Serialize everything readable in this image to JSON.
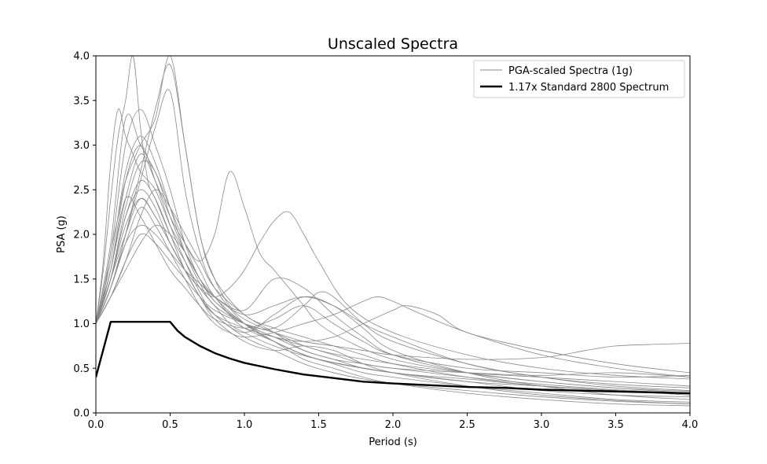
{
  "chart_data": {
    "type": "line",
    "title": "Unscaled Spectra",
    "xlabel": "Period (s)",
    "ylabel": "PSA (g)",
    "xlim": [
      0,
      4
    ],
    "ylim": [
      0,
      4
    ],
    "xticks": [
      0,
      0.5,
      1,
      1.5,
      2,
      2.5,
      3,
      3.5,
      4
    ],
    "xtick_labels": [
      "0.0",
      "0.5",
      "1.0",
      "1.5",
      "2.0",
      "2.5",
      "3.0",
      "3.5",
      "4.0"
    ],
    "yticks": [
      0,
      0.5,
      1,
      1.5,
      2,
      2.5,
      3,
      3.5,
      4
    ],
    "ytick_labels": [
      "0.0",
      "0.5",
      "1.0",
      "1.5",
      "2.0",
      "2.5",
      "3.0",
      "3.5",
      "4.0"
    ],
    "grid": false,
    "legend_position": "top-right",
    "legend": [
      {
        "label": "PGA-scaled Spectra (1g)",
        "color": "#888888"
      },
      {
        "label": "1.17x Standard 2800 Spectrum",
        "color": "#000000"
      }
    ],
    "series": [
      {
        "name": "PGA-scaled Spectra (1g)",
        "color": "#888888",
        "x": [
          0,
          0.05,
          0.1,
          0.15,
          0.2,
          0.25,
          0.3,
          0.35,
          0.4,
          0.5,
          0.6,
          0.7,
          0.8,
          0.9,
          1.0,
          1.2,
          1.5,
          2.0,
          2.5,
          3.0,
          3.5,
          4.0
        ],
        "y": [
          1.0,
          1.6,
          2.4,
          3.1,
          3.5,
          4.0,
          3.2,
          2.6,
          2.4,
          2.0,
          1.7,
          1.4,
          1.2,
          1.0,
          0.9,
          0.75,
          0.6,
          0.45,
          0.35,
          0.3,
          0.25,
          0.2
        ]
      },
      {
        "name": "",
        "color": "#888888",
        "x": [
          0,
          0.05,
          0.1,
          0.15,
          0.2,
          0.3,
          0.4,
          0.5,
          0.6,
          0.7,
          0.8,
          0.9,
          1.0,
          1.2,
          1.5,
          2.0,
          2.5,
          3.0,
          3.5,
          4.0
        ],
        "y": [
          1.0,
          1.3,
          1.8,
          2.2,
          2.6,
          3.0,
          3.3,
          4.0,
          3.0,
          2.0,
          1.5,
          1.2,
          1.05,
          0.9,
          0.7,
          0.55,
          0.45,
          0.4,
          0.35,
          0.3
        ]
      },
      {
        "name": "",
        "color": "#888888",
        "x": [
          0,
          0.05,
          0.1,
          0.15,
          0.2,
          0.25,
          0.3,
          0.4,
          0.5,
          0.6,
          0.7,
          0.8,
          0.9,
          1.0,
          1.2,
          1.5,
          2.0,
          2.5,
          3.0,
          3.5,
          4.0
        ],
        "y": [
          1.0,
          1.7,
          2.8,
          3.4,
          3.1,
          2.9,
          2.7,
          2.5,
          2.1,
          1.8,
          1.5,
          1.3,
          1.1,
          0.95,
          0.8,
          0.6,
          0.45,
          0.38,
          0.3,
          0.25,
          0.22
        ]
      },
      {
        "name": "",
        "color": "#888888",
        "x": [
          0,
          0.1,
          0.2,
          0.3,
          0.4,
          0.5,
          0.6,
          0.7,
          0.8,
          0.9,
          1.0,
          1.1,
          1.2,
          1.3,
          1.4,
          1.5,
          1.7,
          2.0,
          2.5,
          3.0,
          3.5,
          4.0
        ],
        "y": [
          1.0,
          1.6,
          2.4,
          2.9,
          2.6,
          2.2,
          1.9,
          1.7,
          2.0,
          2.7,
          2.3,
          1.8,
          1.6,
          1.4,
          1.2,
          1.0,
          0.8,
          0.6,
          0.45,
          0.35,
          0.28,
          0.22
        ]
      },
      {
        "name": "",
        "color": "#888888",
        "x": [
          0,
          0.1,
          0.2,
          0.3,
          0.4,
          0.5,
          0.6,
          0.7,
          0.8,
          0.9,
          1.0,
          1.1,
          1.2,
          1.3,
          1.4,
          1.5,
          1.7,
          2.0,
          2.5,
          3.0,
          3.5,
          4.0
        ],
        "y": [
          1.0,
          1.5,
          2.0,
          2.4,
          2.2,
          1.9,
          1.6,
          1.4,
          1.3,
          1.4,
          1.6,
          1.9,
          2.15,
          2.25,
          2.0,
          1.7,
          1.2,
          0.9,
          0.65,
          0.5,
          0.42,
          0.38
        ]
      },
      {
        "name": "",
        "color": "#888888",
        "x": [
          0,
          0.1,
          0.2,
          0.3,
          0.4,
          0.5,
          0.6,
          0.7,
          0.8,
          0.9,
          1.0,
          1.2,
          1.4,
          1.6,
          1.8,
          1.9,
          2.0,
          2.2,
          2.5,
          3.0,
          3.5,
          4.0
        ],
        "y": [
          1.0,
          1.4,
          1.9,
          2.3,
          2.1,
          1.8,
          1.5,
          1.2,
          1.0,
          0.9,
          0.85,
          0.9,
          1.0,
          1.1,
          1.25,
          1.3,
          1.25,
          1.1,
          0.9,
          0.65,
          0.5,
          0.4
        ]
      },
      {
        "name": "",
        "color": "#888888",
        "x": [
          0,
          0.1,
          0.2,
          0.3,
          0.4,
          0.5,
          0.6,
          0.7,
          0.8,
          1.0,
          1.2,
          1.4,
          1.6,
          1.8,
          2.0,
          2.1,
          2.3,
          2.5,
          3.0,
          3.5,
          4.0
        ],
        "y": [
          1.0,
          1.5,
          2.2,
          2.5,
          2.3,
          1.9,
          1.6,
          1.3,
          1.1,
          0.95,
          0.85,
          0.8,
          0.85,
          1.0,
          1.15,
          1.2,
          1.1,
          0.9,
          0.7,
          0.55,
          0.45
        ]
      },
      {
        "name": "",
        "color": "#888888",
        "x": [
          0,
          0.1,
          0.2,
          0.3,
          0.4,
          0.5,
          0.6,
          0.7,
          0.8,
          1.0,
          1.2,
          1.4,
          1.6,
          1.8,
          2.0,
          2.5,
          3.0,
          3.3,
          3.5,
          3.8,
          4.0
        ],
        "y": [
          1.0,
          1.3,
          1.7,
          2.0,
          1.9,
          1.7,
          1.5,
          1.3,
          1.15,
          1.0,
          0.9,
          0.8,
          0.75,
          0.7,
          0.65,
          0.6,
          0.62,
          0.7,
          0.75,
          0.77,
          0.78
        ]
      },
      {
        "name": "",
        "color": "#888888",
        "x": [
          0,
          0.1,
          0.2,
          0.3,
          0.4,
          0.5,
          0.6,
          0.7,
          0.8,
          1.0,
          1.2,
          1.4,
          1.6,
          1.8,
          2.0,
          2.5,
          3.0,
          3.5,
          4.0
        ],
        "y": [
          1.0,
          1.8,
          3.0,
          3.4,
          3.0,
          2.5,
          1.9,
          1.5,
          1.3,
          1.1,
          1.2,
          1.3,
          1.2,
          1.0,
          0.85,
          0.55,
          0.4,
          0.3,
          0.25
        ]
      },
      {
        "name": "",
        "color": "#888888",
        "x": [
          0,
          0.1,
          0.2,
          0.3,
          0.4,
          0.5,
          0.6,
          0.7,
          0.8,
          1.0,
          1.2,
          1.4,
          1.5,
          1.6,
          1.8,
          2.0,
          2.5,
          3.0,
          3.5,
          4.0
        ],
        "y": [
          1.0,
          1.5,
          2.3,
          2.8,
          2.7,
          2.2,
          1.8,
          1.5,
          1.25,
          1.0,
          0.95,
          1.2,
          1.35,
          1.3,
          1.0,
          0.8,
          0.55,
          0.4,
          0.32,
          0.28
        ]
      },
      {
        "name": "",
        "color": "#888888",
        "x": [
          0,
          0.1,
          0.2,
          0.3,
          0.4,
          0.5,
          0.6,
          0.7,
          0.8,
          1.0,
          1.2,
          1.4,
          1.6,
          1.8,
          2.0,
          2.5,
          3.0,
          3.5,
          4.0
        ],
        "y": [
          1.0,
          1.4,
          2.0,
          2.6,
          3.2,
          3.6,
          2.5,
          1.8,
          1.4,
          1.0,
          0.8,
          0.65,
          0.55,
          0.45,
          0.4,
          0.3,
          0.22,
          0.15,
          0.12
        ]
      },
      {
        "name": "",
        "color": "#888888",
        "x": [
          0,
          0.1,
          0.2,
          0.3,
          0.4,
          0.5,
          0.6,
          0.7,
          0.8,
          1.0,
          1.2,
          1.4,
          1.6,
          1.8,
          2.0,
          2.5,
          3.0,
          3.5,
          4.0
        ],
        "y": [
          1.0,
          1.3,
          1.7,
          2.2,
          2.5,
          2.3,
          2.0,
          1.7,
          1.4,
          1.1,
          0.9,
          0.7,
          0.6,
          0.5,
          0.45,
          0.35,
          0.25,
          0.2,
          0.18
        ]
      },
      {
        "name": "",
        "color": "#888888",
        "x": [
          0,
          0.1,
          0.2,
          0.3,
          0.4,
          0.5,
          0.6,
          0.7,
          0.8,
          1.0,
          1.2,
          1.4,
          1.6,
          1.8,
          2.0,
          2.5,
          3.0,
          3.5,
          4.0
        ],
        "y": [
          1.0,
          1.6,
          2.6,
          3.0,
          2.6,
          2.1,
          1.7,
          1.35,
          1.1,
          0.9,
          1.1,
          1.3,
          1.2,
          0.95,
          0.7,
          0.45,
          0.3,
          0.2,
          0.15
        ]
      },
      {
        "name": "",
        "color": "#888888",
        "x": [
          0,
          0.1,
          0.2,
          0.3,
          0.4,
          0.5,
          0.6,
          0.7,
          0.8,
          1.0,
          1.2,
          1.4,
          1.6,
          1.8,
          2.0,
          2.5,
          3.0,
          3.5,
          4.0
        ],
        "y": [
          1.0,
          1.5,
          2.1,
          2.4,
          2.2,
          1.9,
          1.6,
          1.3,
          1.1,
          0.85,
          0.7,
          0.55,
          0.45,
          0.38,
          0.33,
          0.25,
          0.18,
          0.13,
          0.1
        ]
      },
      {
        "name": "",
        "color": "#888888",
        "x": [
          0,
          0.1,
          0.2,
          0.3,
          0.4,
          0.5,
          0.6,
          0.7,
          0.8,
          1.0,
          1.2,
          1.4,
          1.6,
          1.8,
          2.0,
          2.5,
          3.0,
          3.5,
          4.0
        ],
        "y": [
          1.0,
          1.7,
          2.7,
          3.1,
          2.8,
          2.3,
          1.8,
          1.45,
          1.2,
          1.0,
          0.85,
          0.75,
          0.65,
          0.55,
          0.5,
          0.4,
          0.32,
          0.26,
          0.22
        ]
      },
      {
        "name": "",
        "color": "#888888",
        "x": [
          0,
          0.1,
          0.2,
          0.3,
          0.4,
          0.5,
          0.6,
          0.7,
          0.8,
          1.0,
          1.2,
          1.4,
          1.6,
          1.8,
          2.0,
          2.5,
          3.0,
          3.5,
          4.0
        ],
        "y": [
          1.0,
          1.4,
          1.9,
          2.1,
          2.0,
          1.8,
          1.6,
          1.45,
          1.3,
          1.15,
          1.5,
          1.4,
          1.1,
          0.85,
          0.65,
          0.45,
          0.35,
          0.28,
          0.24
        ]
      },
      {
        "name": "",
        "color": "#888888",
        "x": [
          0,
          0.1,
          0.2,
          0.3,
          0.4,
          0.5,
          0.6,
          0.7,
          0.8,
          1.0,
          1.2,
          1.4,
          1.6,
          1.8,
          2.0,
          2.5,
          3.0,
          3.5,
          4.0
        ],
        "y": [
          1.0,
          1.3,
          1.6,
          1.9,
          2.1,
          2.0,
          1.8,
          1.5,
          1.25,
          1.0,
          0.8,
          0.6,
          0.5,
          0.4,
          0.33,
          0.22,
          0.15,
          0.1,
          0.08
        ]
      },
      {
        "name": "",
        "color": "#888888",
        "x": [
          0,
          0.1,
          0.2,
          0.3,
          0.4,
          0.5,
          0.6,
          0.7,
          0.8,
          1.0,
          1.2,
          1.4,
          1.6,
          1.8,
          2.0,
          2.5,
          3.0,
          3.5,
          4.0
        ],
        "y": [
          1.0,
          1.9,
          3.3,
          3.0,
          2.7,
          2.3,
          1.9,
          1.6,
          1.3,
          1.0,
          0.85,
          0.7,
          0.6,
          0.55,
          0.5,
          0.45,
          0.42,
          0.45,
          0.4
        ]
      },
      {
        "name": "",
        "color": "#888888",
        "x": [
          0,
          0.1,
          0.2,
          0.3,
          0.4,
          0.5,
          0.6,
          0.7,
          0.8,
          1.0,
          1.2,
          1.4,
          1.6,
          1.8,
          2.0,
          2.5,
          3.0,
          3.5,
          4.0
        ],
        "y": [
          1.0,
          1.5,
          2.2,
          2.6,
          2.4,
          2.0,
          1.6,
          1.3,
          1.05,
          0.8,
          0.7,
          0.75,
          0.7,
          0.55,
          0.45,
          0.3,
          0.2,
          0.14,
          0.1
        ]
      },
      {
        "name": "",
        "color": "#888888",
        "x": [
          0,
          0.1,
          0.2,
          0.3,
          0.4,
          0.5,
          0.6,
          0.7,
          0.8,
          1.0,
          1.2,
          1.4,
          1.6,
          1.8,
          2.0,
          2.5,
          3.0,
          3.5,
          4.0
        ],
        "y": [
          1.0,
          1.6,
          2.4,
          2.2,
          1.9,
          1.6,
          1.4,
          1.2,
          1.05,
          0.95,
          1.05,
          1.2,
          1.0,
          0.8,
          0.65,
          0.5,
          0.45,
          0.4,
          0.42
        ]
      },
      {
        "name": "",
        "color": "#888888",
        "x": [
          0,
          0.1,
          0.2,
          0.3,
          0.4,
          0.5,
          0.6,
          0.7,
          0.8,
          1.0,
          1.2,
          1.4,
          1.6,
          1.8,
          2.0,
          2.5,
          3.0,
          3.5,
          4.0
        ],
        "y": [
          1.0,
          1.4,
          2.0,
          2.7,
          3.4,
          3.9,
          3.0,
          2.0,
          1.5,
          1.1,
          0.95,
          0.85,
          0.75,
          0.65,
          0.55,
          0.4,
          0.3,
          0.25,
          0.2
        ]
      },
      {
        "name": "1.17x Standard 2800 Spectrum",
        "color": "#000000",
        "x": [
          0.0,
          0.1,
          0.5,
          0.55,
          0.6,
          0.65,
          0.7,
          0.8,
          0.9,
          1.0,
          1.2,
          1.4,
          1.6,
          1.8,
          2.0,
          2.25,
          2.5,
          2.75,
          3.0,
          3.25,
          3.5,
          3.75,
          4.0
        ],
        "y": [
          0.4,
          1.02,
          1.02,
          0.92,
          0.85,
          0.8,
          0.75,
          0.67,
          0.61,
          0.56,
          0.49,
          0.43,
          0.39,
          0.35,
          0.33,
          0.31,
          0.29,
          0.28,
          0.26,
          0.25,
          0.24,
          0.23,
          0.22
        ]
      }
    ]
  }
}
